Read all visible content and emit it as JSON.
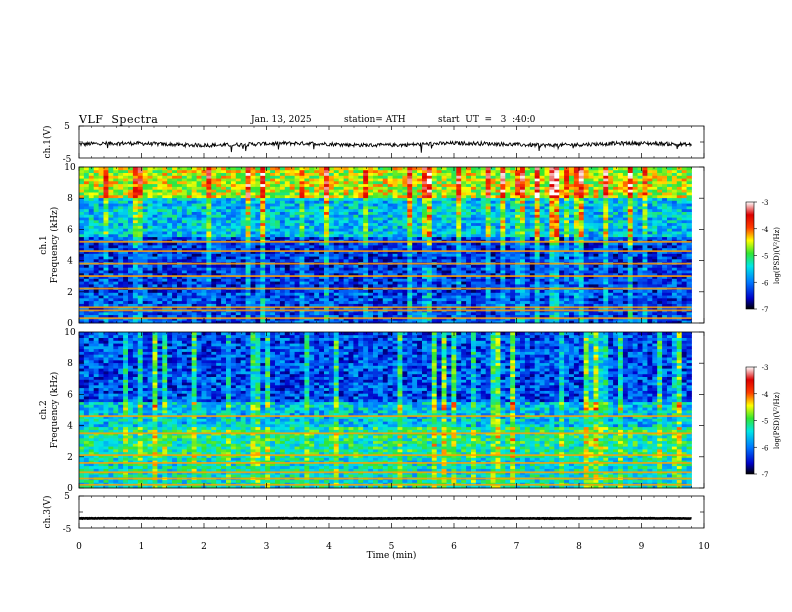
{
  "header": {
    "title": "VLF  Spectra",
    "date": "Jan. 13, 2025",
    "station": "station= ATH",
    "start": "start  UT  =   3  :40:0"
  },
  "chart_data": [
    {
      "type": "line",
      "panel": "ch1-waveform",
      "ylabel": "ch.1(V)",
      "y_ticks": [
        "5",
        "-5"
      ],
      "ylim": [
        -5,
        5
      ],
      "x_range_min": [
        0,
        9.8
      ],
      "level": -0.7,
      "noise_amplitude": 1.0,
      "line_color": "#000000"
    },
    {
      "type": "heatmap",
      "panel": "ch1-spectrogram",
      "ylabel_top": "ch.1",
      "ylabel": "Frequency  (kHz)",
      "y_ticks": [
        "0",
        "2",
        "4",
        "6",
        "8",
        "10"
      ],
      "ylim": [
        0,
        10
      ],
      "x_range_min": [
        0,
        9.8
      ],
      "colorbar": {
        "label": "log(PSD)(V²/Hz)",
        "ticks": [
          "-3",
          "-4",
          "-5",
          "-6",
          "-7"
        ],
        "range": [
          -7,
          -3
        ],
        "colors": [
          "#000000",
          "#0000c8",
          "#0078ff",
          "#00e6e6",
          "#32e632",
          "#ffff00",
          "#ff3c00",
          "#dc0000",
          "#ffffff"
        ]
      },
      "horizontal_lines_khz": [
        0.3,
        0.8,
        1.0,
        2.2,
        3.0,
        3.8,
        4.6,
        5.2
      ],
      "bands": [
        {
          "from_khz": 0,
          "to_khz": 2,
          "log_psd": -6.2
        },
        {
          "from_khz": 2,
          "to_khz": 5.5,
          "log_psd": -6.3
        },
        {
          "from_khz": 5.5,
          "to_khz": 8,
          "log_psd": -5.6
        },
        {
          "from_khz": 8,
          "to_khz": 10,
          "log_psd": -4.6
        }
      ]
    },
    {
      "type": "heatmap",
      "panel": "ch2-spectrogram",
      "ylabel_top": "ch.2",
      "ylabel": "Frequency  (kHz)",
      "y_ticks": [
        "0",
        "2",
        "4",
        "6",
        "8",
        "10"
      ],
      "ylim": [
        0,
        10
      ],
      "x_range_min": [
        0,
        9.8
      ],
      "colorbar": {
        "label": "log(PSD)(V²/Hz)",
        "ticks": [
          "-3",
          "-4",
          "-5",
          "-6",
          "-7"
        ],
        "range": [
          -7,
          -3
        ],
        "colors": [
          "#000000",
          "#0000c8",
          "#0078ff",
          "#00e6e6",
          "#32e632",
          "#ffff00",
          "#ff3c00",
          "#dc0000",
          "#ffffff"
        ]
      },
      "horizontal_lines_khz": [
        0.2,
        0.6,
        1.0,
        1.6,
        2.1,
        3.5,
        4.6
      ],
      "bands": [
        {
          "from_khz": 0,
          "to_khz": 2,
          "log_psd": -5.4
        },
        {
          "from_khz": 2,
          "to_khz": 4,
          "log_psd": -5.2
        },
        {
          "from_khz": 4,
          "to_khz": 5.5,
          "log_psd": -5.6
        },
        {
          "from_khz": 5.5,
          "to_khz": 10,
          "log_psd": -6.2
        }
      ]
    },
    {
      "type": "line",
      "panel": "ch3-waveform",
      "ylabel": "ch.3(V)",
      "y_ticks": [
        "5",
        "-5"
      ],
      "ylim": [
        -5,
        5
      ],
      "x_range_min": [
        0,
        9.8
      ],
      "level": -2,
      "noise_amplitude": 0.1,
      "line_color": "#000000",
      "xlabel": "Time  (min)",
      "x_ticks": [
        "0",
        "1",
        "2",
        "3",
        "4",
        "5",
        "6",
        "7",
        "8",
        "9",
        "10"
      ],
      "xlim": [
        0,
        10
      ]
    }
  ]
}
